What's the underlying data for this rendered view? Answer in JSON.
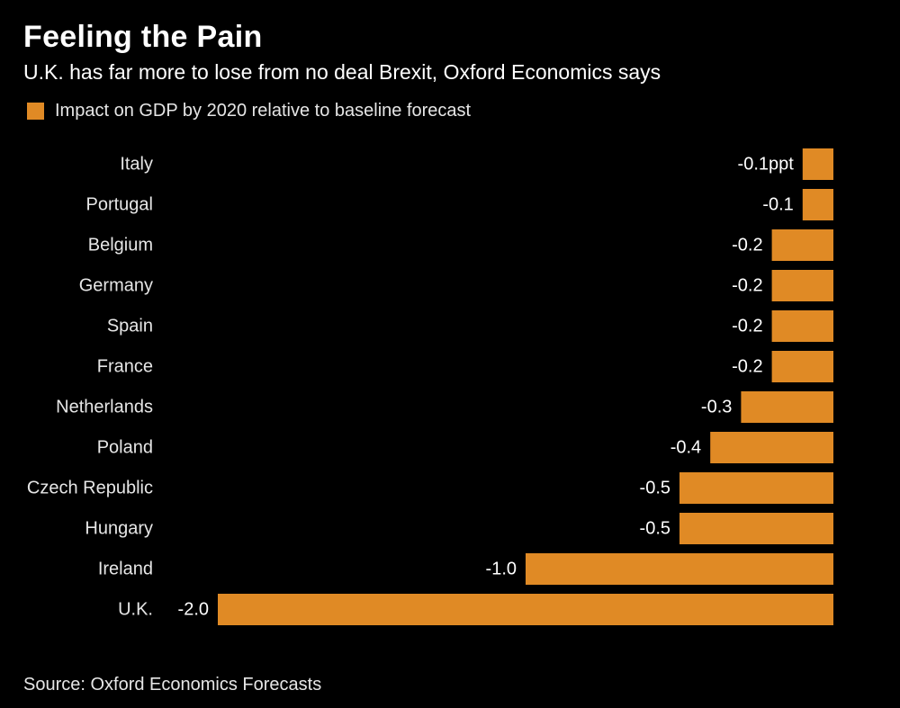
{
  "chart_data": {
    "type": "bar",
    "orientation": "horizontal",
    "title": "Feeling the Pain",
    "subtitle": "U.K. has far more to lose from no deal Brexit, Oxford Economics says",
    "legend": [
      {
        "name": "Impact on GDP by 2020 relative to baseline forecast",
        "color": "#E08A25"
      }
    ],
    "categories": [
      "Italy",
      "Portugal",
      "Belgium",
      "Germany",
      "Spain",
      "France",
      "Netherlands",
      "Poland",
      "Czech Republic",
      "Hungary",
      "Ireland",
      "U.K."
    ],
    "values": [
      -0.1,
      -0.1,
      -0.2,
      -0.2,
      -0.2,
      -0.2,
      -0.3,
      -0.4,
      -0.5,
      -0.5,
      -1.0,
      -2.0
    ],
    "value_labels": [
      "-0.1ppt",
      "-0.1",
      "-0.2",
      "-0.2",
      "-0.2",
      "-0.2",
      "-0.3",
      "-0.4",
      "-0.5",
      "-0.5",
      "-1.0",
      "-2.0"
    ],
    "xlim": [
      -2.0,
      0
    ],
    "grid": false,
    "bar_color": "#E08A25"
  },
  "source": "Source: Oxford Economics Forecasts"
}
